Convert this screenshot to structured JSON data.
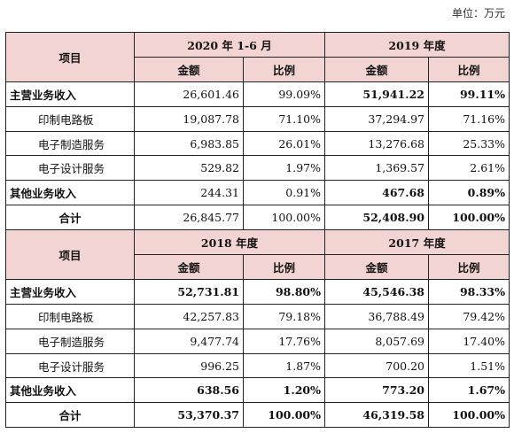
{
  "unit": "单位：万元",
  "headers": {
    "item": "项目",
    "amount": "金额",
    "ratio": "比例",
    "p2020": "2020 年 1-6 月",
    "p2019": "2019 年度",
    "p2018": "2018 年度",
    "p2017": "2017 年度"
  },
  "top": [
    {
      "label": "主营业务收入",
      "a1": "26,601.46",
      "r1": "99.09%",
      "a2": "51,941.22",
      "r2": "99.11%"
    },
    {
      "label": "印制电路板",
      "a1": "19,087.78",
      "r1": "71.10%",
      "a2": "37,294.97",
      "r2": "71.16%"
    },
    {
      "label": "电子制造服务",
      "a1": "6,983.85",
      "r1": "26.01%",
      "a2": "13,276.68",
      "r2": "25.33%"
    },
    {
      "label": "电子设计服务",
      "a1": "529.82",
      "r1": "1.97%",
      "a2": "1,369.57",
      "r2": "2.61%"
    },
    {
      "label": "其他业务收入",
      "a1": "244.31",
      "r1": "0.91%",
      "a2": "467.68",
      "r2": "0.89%"
    },
    {
      "label": "合计",
      "a1": "26,845.77",
      "r1": "100.00%",
      "a2": "52,408.90",
      "r2": "100.00%"
    }
  ],
  "bottom": [
    {
      "label": "主营业务收入",
      "a1": "52,731.81",
      "r1": "98.80%",
      "a2": "45,546.38",
      "r2": "98.33%"
    },
    {
      "label": "印制电路板",
      "a1": "42,257.83",
      "r1": "79.18%",
      "a2": "36,788.49",
      "r2": "79.42%"
    },
    {
      "label": "电子制造服务",
      "a1": "9,477.74",
      "r1": "17.76%",
      "a2": "8,057.69",
      "r2": "17.40%"
    },
    {
      "label": "电子设计服务",
      "a1": "996.25",
      "r1": "1.87%",
      "a2": "700.20",
      "r2": "1.51%"
    },
    {
      "label": "其他业务收入",
      "a1": "638.56",
      "r1": "1.20%",
      "a2": "773.20",
      "r2": "1.67%"
    },
    {
      "label": "合计",
      "a1": "53,370.37",
      "r1": "100.00%",
      "a2": "46,319.58",
      "r2": "100.00%"
    }
  ]
}
